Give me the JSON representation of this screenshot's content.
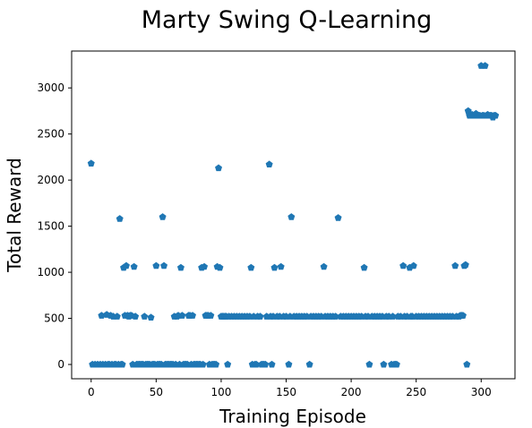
{
  "chart_data": {
    "type": "scatter",
    "title": "Marty Swing Q-Learning",
    "xlabel": "Training Episode",
    "ylabel": "Total Reward",
    "xlim": [
      -15,
      326
    ],
    "ylim": [
      -155,
      3400
    ],
    "xticks": [
      0,
      50,
      100,
      150,
      200,
      250,
      300
    ],
    "yticks": [
      0,
      500,
      1000,
      1500,
      2000,
      2500,
      3000
    ],
    "grid": false,
    "marker": "pentagon",
    "color": "#1f77b4",
    "series": [
      {
        "points": [
          [
            0,
            2180
          ],
          [
            1,
            0
          ],
          [
            3,
            0
          ],
          [
            5,
            0
          ],
          [
            7,
            0
          ],
          [
            8,
            530
          ],
          [
            9,
            0
          ],
          [
            11,
            0
          ],
          [
            12,
            540
          ],
          [
            13,
            0
          ],
          [
            14,
            0
          ],
          [
            15,
            530
          ],
          [
            16,
            0
          ],
          [
            17,
            520
          ],
          [
            18,
            0
          ],
          [
            19,
            0
          ],
          [
            20,
            520
          ],
          [
            21,
            0
          ],
          [
            22,
            1580
          ],
          [
            23,
            0
          ],
          [
            24,
            0
          ],
          [
            25,
            1050
          ],
          [
            26,
            530
          ],
          [
            27,
            1070
          ],
          [
            28,
            530
          ],
          [
            29,
            520
          ],
          [
            30,
            530
          ],
          [
            31,
            530
          ],
          [
            32,
            0
          ],
          [
            33,
            1060
          ],
          [
            34,
            520
          ],
          [
            35,
            0
          ],
          [
            36,
            0
          ],
          [
            37,
            0
          ],
          [
            38,
            0
          ],
          [
            39,
            0
          ],
          [
            40,
            0
          ],
          [
            41,
            520
          ],
          [
            42,
            0
          ],
          [
            43,
            0
          ],
          [
            44,
            0
          ],
          [
            45,
            0
          ],
          [
            46,
            510
          ],
          [
            47,
            0
          ],
          [
            48,
            0
          ],
          [
            49,
            0
          ],
          [
            50,
            1070
          ],
          [
            51,
            0
          ],
          [
            52,
            0
          ],
          [
            53,
            0
          ],
          [
            54,
            0
          ],
          [
            55,
            1600
          ],
          [
            56,
            1070
          ],
          [
            57,
            0
          ],
          [
            58,
            0
          ],
          [
            59,
            0
          ],
          [
            60,
            0
          ],
          [
            61,
            0
          ],
          [
            62,
            0
          ],
          [
            63,
            0
          ],
          [
            64,
            520
          ],
          [
            65,
            0
          ],
          [
            66,
            520
          ],
          [
            67,
            530
          ],
          [
            68,
            0
          ],
          [
            69,
            1050
          ],
          [
            70,
            530
          ],
          [
            71,
            0
          ],
          [
            72,
            0
          ],
          [
            73,
            0
          ],
          [
            74,
            0
          ],
          [
            75,
            530
          ],
          [
            76,
            530
          ],
          [
            77,
            0
          ],
          [
            78,
            530
          ],
          [
            79,
            0
          ],
          [
            80,
            0
          ],
          [
            81,
            0
          ],
          [
            82,
            0
          ],
          [
            83,
            0
          ],
          [
            84,
            0
          ],
          [
            85,
            1050
          ],
          [
            86,
            0
          ],
          [
            87,
            1060
          ],
          [
            88,
            530
          ],
          [
            89,
            530
          ],
          [
            90,
            530
          ],
          [
            91,
            0
          ],
          [
            92,
            530
          ],
          [
            93,
            0
          ],
          [
            94,
            0
          ],
          [
            95,
            0
          ],
          [
            96,
            0
          ],
          [
            97,
            1060
          ],
          [
            98,
            2130
          ],
          [
            99,
            1050
          ],
          [
            100,
            520
          ],
          [
            101,
            520
          ],
          [
            102,
            520
          ],
          [
            103,
            520
          ],
          [
            104,
            520
          ],
          [
            105,
            0
          ],
          [
            106,
            520
          ],
          [
            108,
            520
          ],
          [
            110,
            520
          ],
          [
            112,
            520
          ],
          [
            114,
            520
          ],
          [
            116,
            520
          ],
          [
            118,
            520
          ],
          [
            120,
            520
          ],
          [
            122,
            520
          ],
          [
            123,
            1050
          ],
          [
            124,
            0
          ],
          [
            125,
            520
          ],
          [
            126,
            0
          ],
          [
            127,
            0
          ],
          [
            128,
            520
          ],
          [
            130,
            520
          ],
          [
            131,
            0
          ],
          [
            132,
            0
          ],
          [
            133,
            0
          ],
          [
            134,
            0
          ],
          [
            135,
            520
          ],
          [
            137,
            2170
          ],
          [
            138,
            520
          ],
          [
            139,
            0
          ],
          [
            140,
            520
          ],
          [
            141,
            1050
          ],
          [
            143,
            520
          ],
          [
            145,
            520
          ],
          [
            146,
            1060
          ],
          [
            148,
            520
          ],
          [
            150,
            520
          ],
          [
            152,
            0
          ],
          [
            153,
            520
          ],
          [
            154,
            1600
          ],
          [
            156,
            520
          ],
          [
            158,
            520
          ],
          [
            160,
            520
          ],
          [
            162,
            520
          ],
          [
            164,
            520
          ],
          [
            166,
            520
          ],
          [
            168,
            0
          ],
          [
            169,
            520
          ],
          [
            171,
            520
          ],
          [
            173,
            520
          ],
          [
            175,
            520
          ],
          [
            177,
            520
          ],
          [
            179,
            1060
          ],
          [
            180,
            520
          ],
          [
            182,
            520
          ],
          [
            184,
            520
          ],
          [
            186,
            520
          ],
          [
            188,
            520
          ],
          [
            190,
            1590
          ],
          [
            192,
            520
          ],
          [
            194,
            520
          ],
          [
            196,
            520
          ],
          [
            198,
            520
          ],
          [
            200,
            520
          ],
          [
            202,
            520
          ],
          [
            204,
            520
          ],
          [
            206,
            520
          ],
          [
            208,
            520
          ],
          [
            210,
            1050
          ],
          [
            211,
            520
          ],
          [
            213,
            520
          ],
          [
            214,
            0
          ],
          [
            216,
            520
          ],
          [
            218,
            520
          ],
          [
            220,
            520
          ],
          [
            222,
            520
          ],
          [
            224,
            520
          ],
          [
            225,
            0
          ],
          [
            227,
            520
          ],
          [
            229,
            520
          ],
          [
            231,
            0
          ],
          [
            232,
            520
          ],
          [
            233,
            0
          ],
          [
            234,
            0
          ],
          [
            235,
            0
          ],
          [
            236,
            520
          ],
          [
            238,
            520
          ],
          [
            240,
            1070
          ],
          [
            241,
            520
          ],
          [
            243,
            520
          ],
          [
            245,
            1050
          ],
          [
            246,
            520
          ],
          [
            247,
            520
          ],
          [
            248,
            1070
          ],
          [
            250,
            520
          ],
          [
            252,
            520
          ],
          [
            254,
            520
          ],
          [
            256,
            520
          ],
          [
            258,
            520
          ],
          [
            260,
            520
          ],
          [
            262,
            520
          ],
          [
            264,
            520
          ],
          [
            266,
            520
          ],
          [
            268,
            520
          ],
          [
            270,
            520
          ],
          [
            272,
            520
          ],
          [
            274,
            520
          ],
          [
            276,
            520
          ],
          [
            278,
            520
          ],
          [
            280,
            1070
          ],
          [
            281,
            520
          ],
          [
            283,
            520
          ],
          [
            284,
            530
          ],
          [
            285,
            530
          ],
          [
            286,
            530
          ],
          [
            287,
            1070
          ],
          [
            288,
            1080
          ],
          [
            289,
            0
          ],
          [
            290,
            2750
          ],
          [
            291,
            2700
          ],
          [
            292,
            2700
          ],
          [
            293,
            2710
          ],
          [
            294,
            2700
          ],
          [
            295,
            2700
          ],
          [
            296,
            2720
          ],
          [
            297,
            2700
          ],
          [
            298,
            2700
          ],
          [
            299,
            2700
          ],
          [
            300,
            3240
          ],
          [
            301,
            2700
          ],
          [
            302,
            2700
          ],
          [
            303,
            3240
          ],
          [
            304,
            2700
          ],
          [
            305,
            2710
          ],
          [
            306,
            2700
          ],
          [
            307,
            2700
          ],
          [
            308,
            2700
          ],
          [
            309,
            2680
          ],
          [
            310,
            2700
          ],
          [
            311,
            2700
          ]
        ]
      }
    ]
  }
}
